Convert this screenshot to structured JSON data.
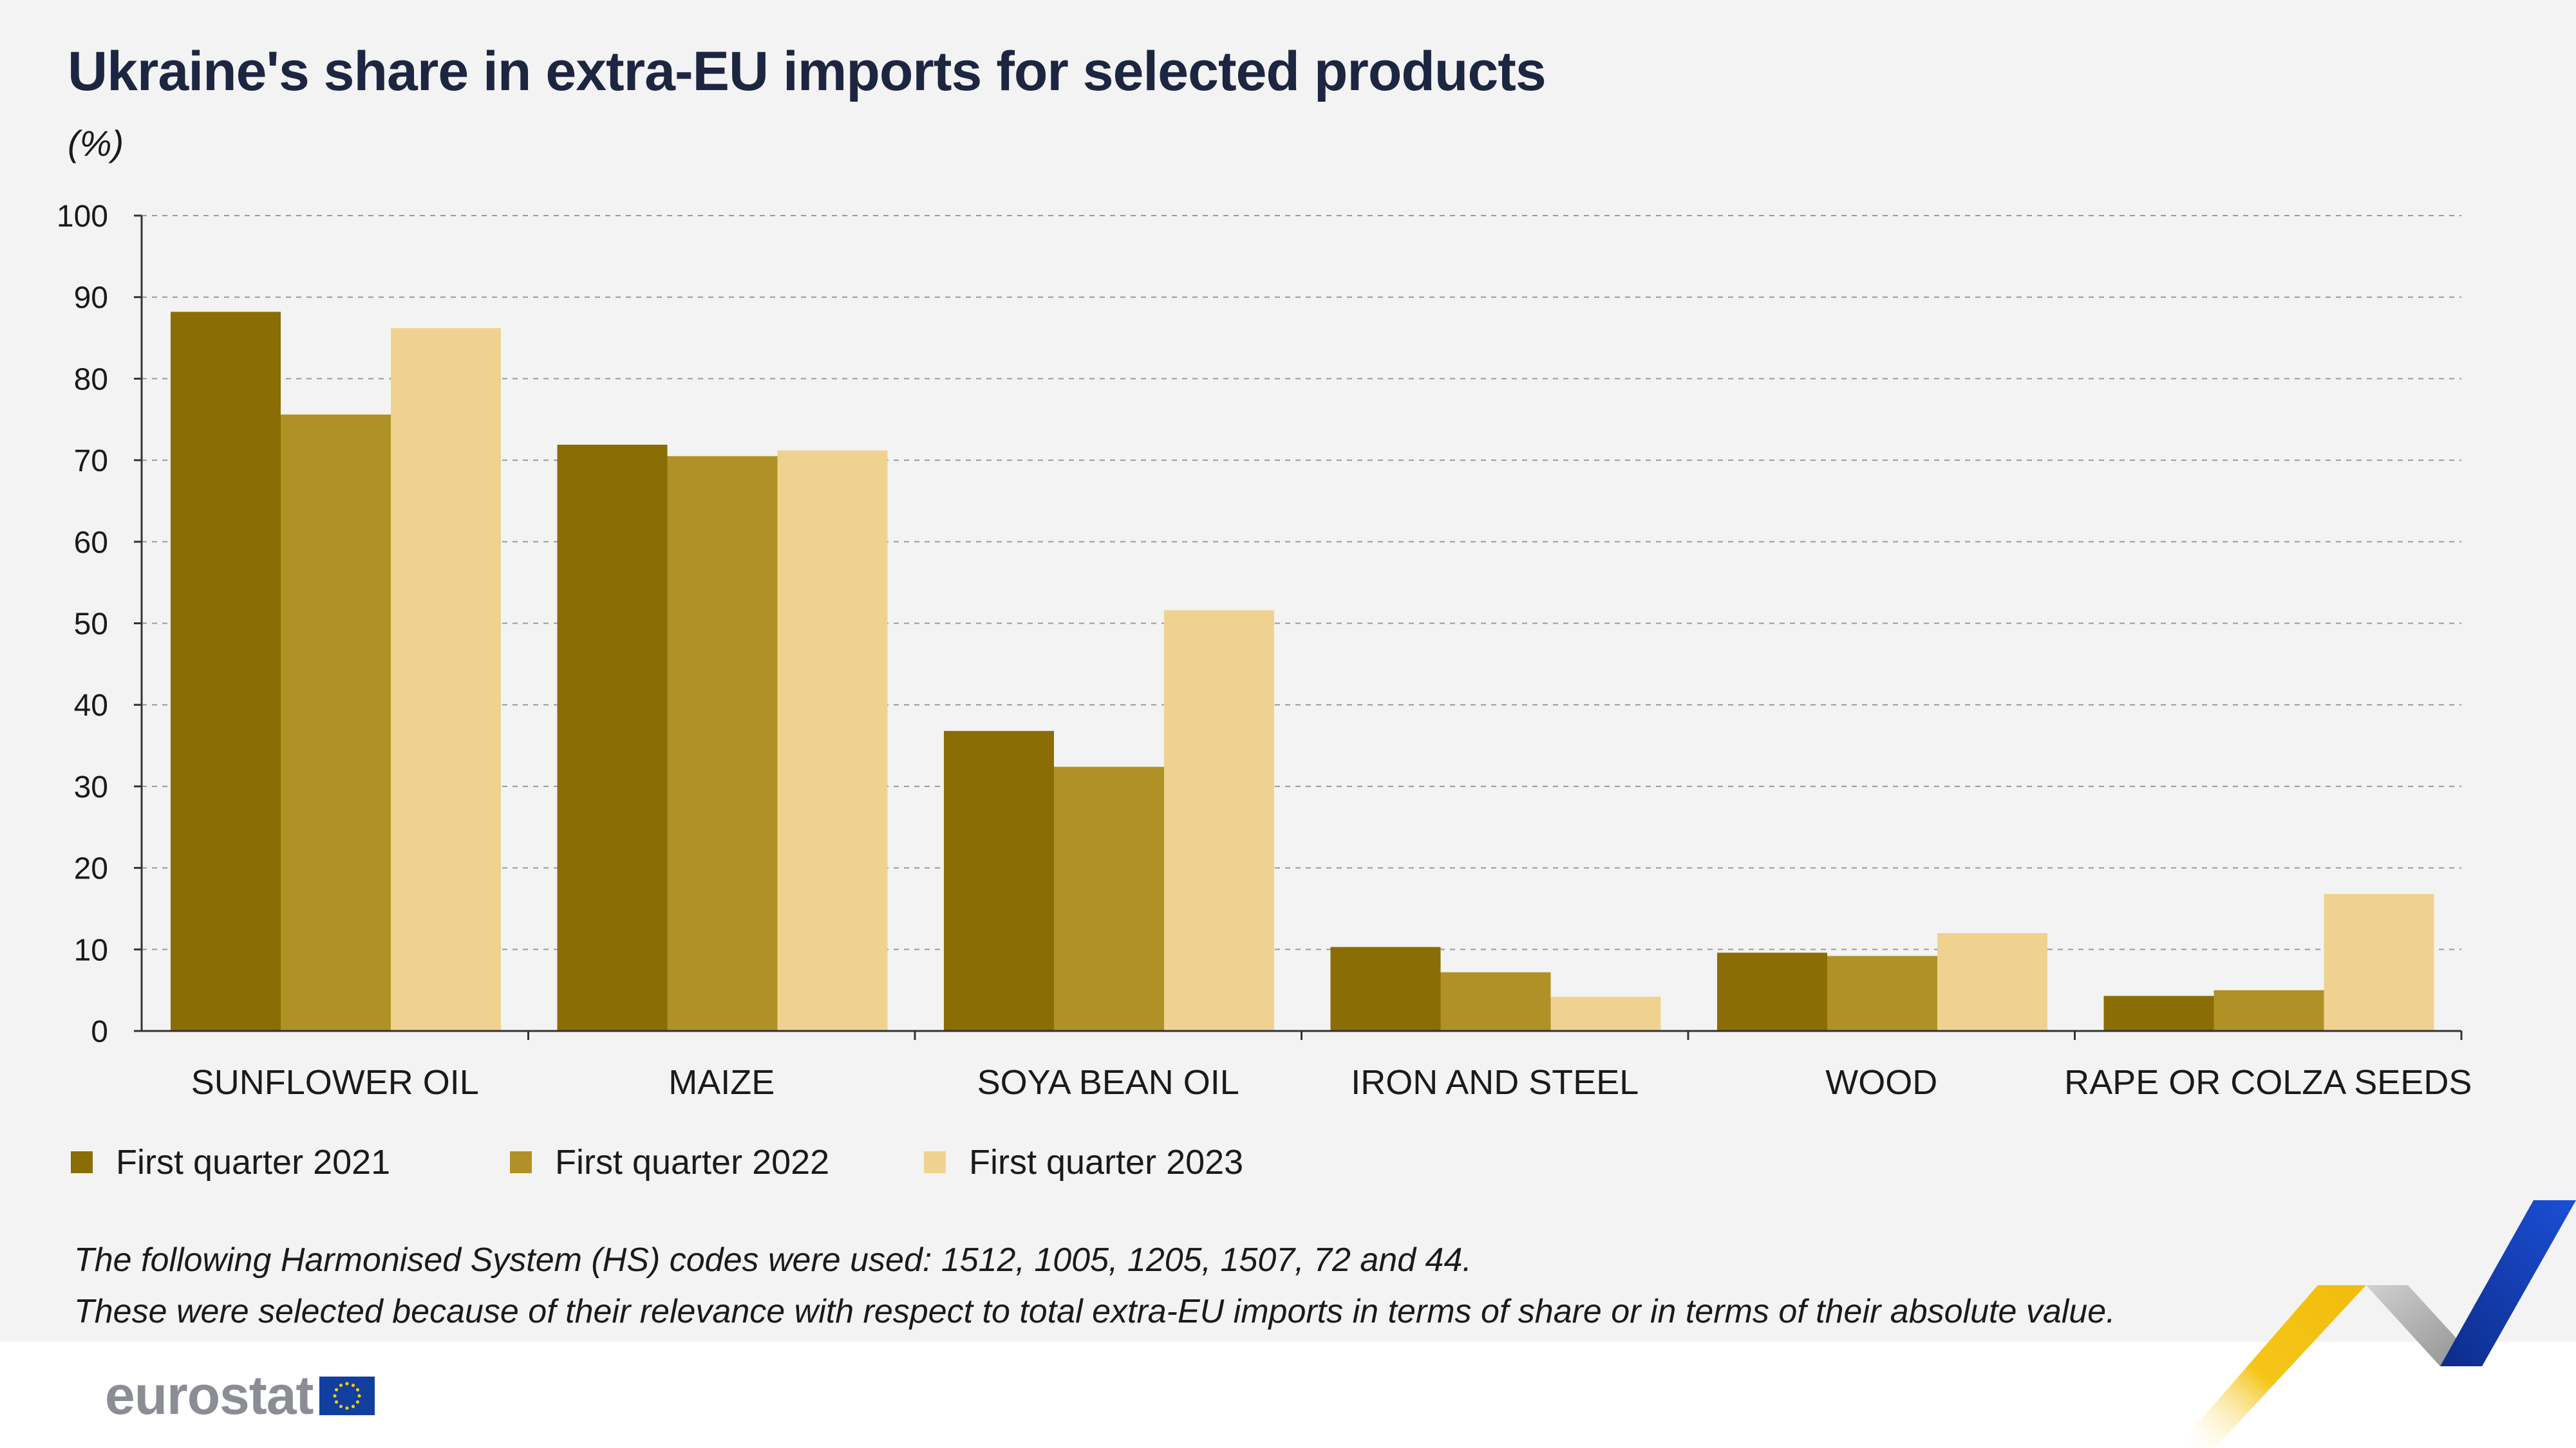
{
  "title": "Ukraine's share in extra-EU imports for selected products",
  "unit_label": "(%)",
  "chart_data": {
    "type": "bar",
    "categories": [
      "SUNFLOWER OIL",
      "MAIZE",
      "SOYA BEAN OIL",
      "IRON AND STEEL",
      "WOOD",
      "RAPE OR COLZA SEEDS"
    ],
    "series": [
      {
        "name": "First quarter 2021",
        "color": "#8a6d05",
        "values": [
          88.2,
          71.9,
          36.8,
          10.3,
          9.6,
          4.3
        ]
      },
      {
        "name": "First quarter 2022",
        "color": "#b09125",
        "values": [
          75.6,
          70.5,
          32.4,
          7.2,
          9.2,
          5.0
        ]
      },
      {
        "name": "First quarter 2023",
        "color": "#f0d290",
        "values": [
          86.2,
          71.2,
          51.6,
          4.2,
          12.0,
          16.8
        ]
      }
    ],
    "ylim": [
      0,
      100
    ],
    "yticks": [
      0,
      10,
      20,
      30,
      40,
      50,
      60,
      70,
      80,
      90,
      100
    ],
    "grid": true,
    "legend_position": "bottom-left"
  },
  "notes": [
    "The following Harmonised System (HS) codes were used: 1512, 1005, 1205, 1507, 72 and 44.",
    "These were selected because of their relevance with respect to total extra-EU imports in terms of share or in terms of their absolute value."
  ],
  "logo": {
    "text": "eurostat",
    "flag_color": "#103fa0",
    "star_color": "#f5cc00"
  }
}
